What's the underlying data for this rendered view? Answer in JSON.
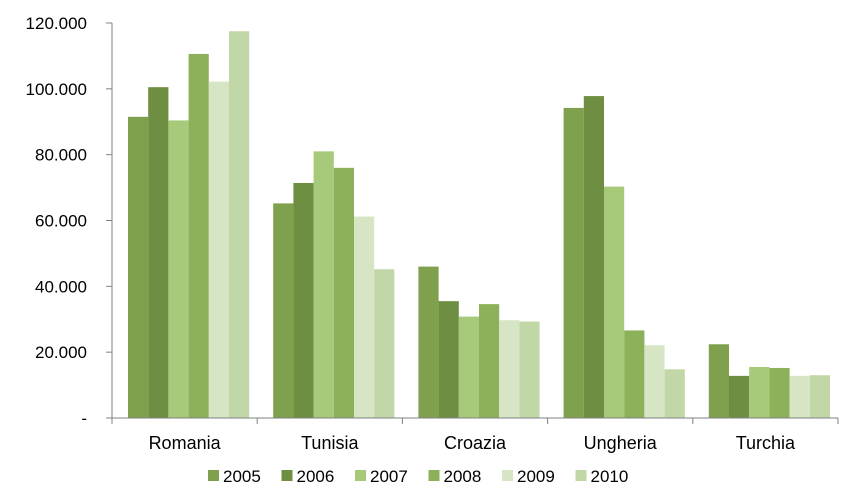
{
  "chart_data": {
    "type": "bar",
    "categories": [
      "Romania",
      "Tunisia",
      "Croazia",
      "Ungheria",
      "Turchia"
    ],
    "y_ticks": [
      "-",
      "20.000",
      "40.000",
      "60.000",
      "80.000",
      "100.000",
      "120.000"
    ],
    "ylim": [
      0,
      120000
    ],
    "grid": false,
    "legend_position": "bottom",
    "series": [
      {
        "name": "2005",
        "color": "#7FA04C",
        "values": [
          91500,
          65200,
          46000,
          94200,
          22400
        ]
      },
      {
        "name": "2006",
        "color": "#6E8E42",
        "values": [
          100500,
          71400,
          35500,
          97800,
          12800
        ]
      },
      {
        "name": "2007",
        "color": "#A6C97A",
        "values": [
          90400,
          81000,
          30800,
          70300,
          15500
        ]
      },
      {
        "name": "2008",
        "color": "#8DB15A",
        "values": [
          110600,
          76000,
          34600,
          26600,
          15200
        ]
      },
      {
        "name": "2009",
        "color": "#D6E5C4",
        "values": [
          102200,
          61200,
          29700,
          22100,
          12800
        ]
      },
      {
        "name": "2010",
        "color": "#C2D7A7",
        "values": [
          117500,
          45200,
          29300,
          14800,
          13000
        ]
      }
    ]
  }
}
